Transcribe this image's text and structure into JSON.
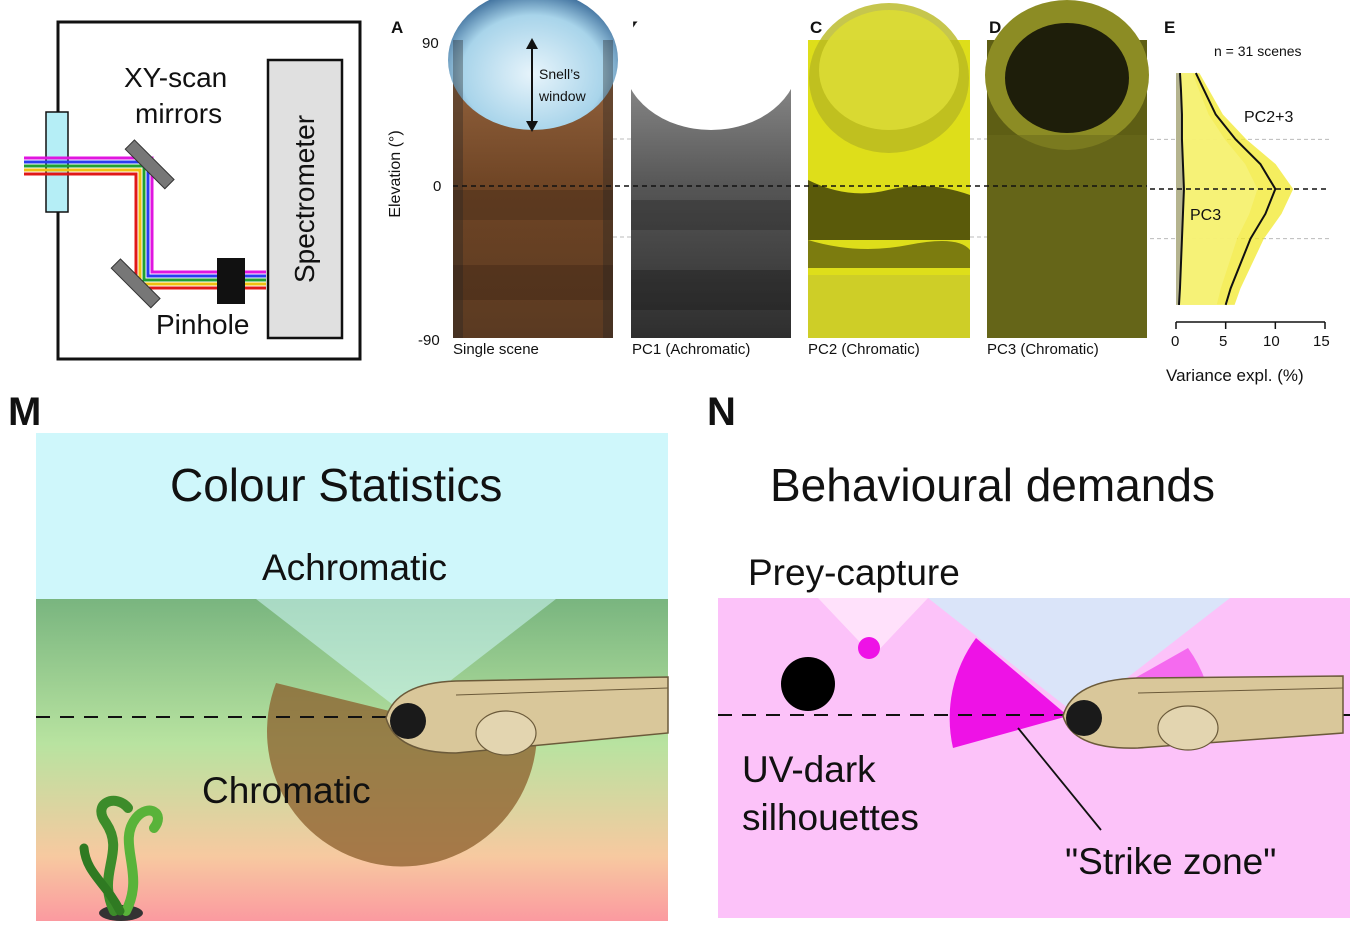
{
  "setup": {
    "mirrors_label_line1": "XY-scan",
    "mirrors_label_line2": "mirrors",
    "pinhole_label": "Pinhole",
    "spectrometer_label": "Spectrometer"
  },
  "panels": {
    "A": {
      "letter": "A",
      "caption": "Single scene",
      "annotation_line1": "Snell’s",
      "annotation_line2": "window"
    },
    "B": {
      "letter": "B",
      "caption": "PC1 (Achromatic)"
    },
    "C": {
      "letter": "C",
      "caption": "PC2 (Chromatic)"
    },
    "D": {
      "letter": "D",
      "caption": "PC3 (Chromatic)"
    },
    "E": {
      "letter": "E"
    }
  },
  "elevation_axis": {
    "label": "Elevation (°)",
    "ticks": [
      "90",
      "0",
      "-90"
    ]
  },
  "chart_data": {
    "type": "area",
    "note_text": "n = 31 scenes",
    "xlabel": "Variance expl. (%)",
    "xticks": [
      "0",
      "5",
      "10",
      "15"
    ],
    "xlim": [
      0,
      15
    ],
    "ylim": [
      -90,
      90
    ],
    "series": [
      {
        "name": "PC2+3",
        "elevation": [
          70,
          60,
          45,
          30,
          15,
          0,
          -15,
          -30,
          -45,
          -60,
          -70
        ],
        "values": [
          2.0,
          2.8,
          4.0,
          6.0,
          8.5,
          10.0,
          9.0,
          7.5,
          6.5,
          5.5,
          5.0
        ]
      },
      {
        "name": "PC3",
        "elevation": [
          70,
          60,
          45,
          30,
          15,
          0,
          -15,
          -30,
          -45,
          -60,
          -70
        ],
        "values": [
          0.4,
          0.5,
          0.6,
          0.6,
          0.7,
          0.8,
          0.7,
          0.6,
          0.5,
          0.4,
          0.3
        ]
      }
    ]
  },
  "M": {
    "letter": "M",
    "title": "Colour Statistics",
    "achromatic_label": "Achromatic",
    "chromatic_label": "Chromatic",
    "colors": {
      "sky": "#cff7fb",
      "water_top": "#79b57f",
      "water_mid": "#b8e3a0",
      "water_bottom": "#fb9aa0",
      "chromatic_wedge": "#8b5e2b"
    }
  },
  "N": {
    "letter": "N",
    "title": "Behavioural demands",
    "prey_label": "Prey-capture",
    "uv_label_line1": "UV-dark",
    "uv_label_line2": "silhouettes",
    "strike_label": "\"Strike zone\"",
    "colors": {
      "background": "#fcc2f9",
      "strike_wedge": "#ee12e6",
      "sky_wedge": "#d6e8f8"
    }
  }
}
